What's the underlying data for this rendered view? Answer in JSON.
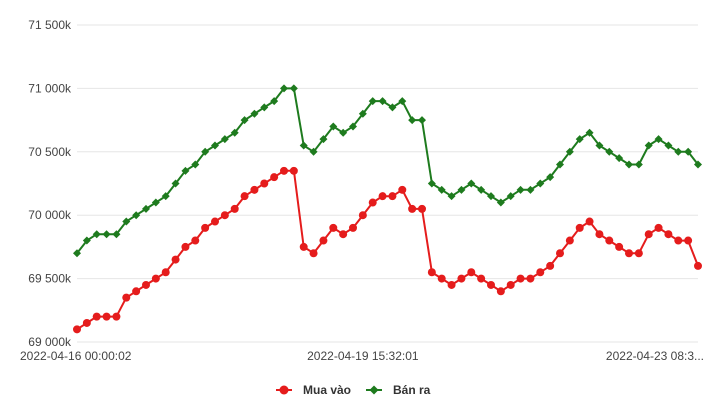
{
  "chart_data": {
    "type": "line",
    "title": "",
    "xlabel": "",
    "ylabel": "",
    "ylim": [
      69000,
      71500
    ],
    "y_ticks": [
      69000,
      69500,
      70000,
      70500,
      71000,
      71500
    ],
    "y_tick_labels": [
      "69 000k",
      "69 500k",
      "70 000k",
      "70 500k",
      "71 000k",
      "71 500k"
    ],
    "x_tick_labels": [
      "2022-04-16 00:00:02",
      "2022-04-19 15:32:01",
      "2022-04-23 08:3..."
    ],
    "x_tick_indices": [
      0,
      29,
      58
    ],
    "grid": true,
    "legend_position": "bottom-center",
    "series": [
      {
        "name": "Mua vào",
        "color": "#e51c1c",
        "marker": "circle",
        "values": [
          69100,
          69150,
          69200,
          69200,
          69200,
          69350,
          69400,
          69450,
          69500,
          69550,
          69650,
          69750,
          69800,
          69900,
          69950,
          70000,
          70050,
          70150,
          70200,
          70250,
          70300,
          70350,
          70350,
          69750,
          69700,
          69800,
          69900,
          69850,
          69900,
          70000,
          70100,
          70150,
          70150,
          70200,
          70050,
          70050,
          69550,
          69500,
          69450,
          69500,
          69550,
          69500,
          69450,
          69400,
          69450,
          69500,
          69500,
          69550,
          69600,
          69700,
          69800,
          69900,
          69950,
          69850,
          69800,
          69750,
          69700,
          69700,
          69850,
          69900,
          69850,
          69800,
          69800,
          69600
        ]
      },
      {
        "name": "Bán ra",
        "color": "#1e7b1e",
        "marker": "diamond",
        "values": [
          69700,
          69800,
          69850,
          69850,
          69850,
          69950,
          70000,
          70050,
          70100,
          70150,
          70250,
          70350,
          70400,
          70500,
          70550,
          70600,
          70650,
          70750,
          70800,
          70850,
          70900,
          71000,
          71000,
          70550,
          70500,
          70600,
          70700,
          70650,
          70700,
          70800,
          70900,
          70900,
          70850,
          70900,
          70750,
          70750,
          70250,
          70200,
          70150,
          70200,
          70250,
          70200,
          70150,
          70100,
          70150,
          70200,
          70200,
          70250,
          70300,
          70400,
          70500,
          70600,
          70650,
          70550,
          70500,
          70450,
          70400,
          70400,
          70550,
          70600,
          70550,
          70500,
          70500,
          70400
        ]
      }
    ]
  }
}
